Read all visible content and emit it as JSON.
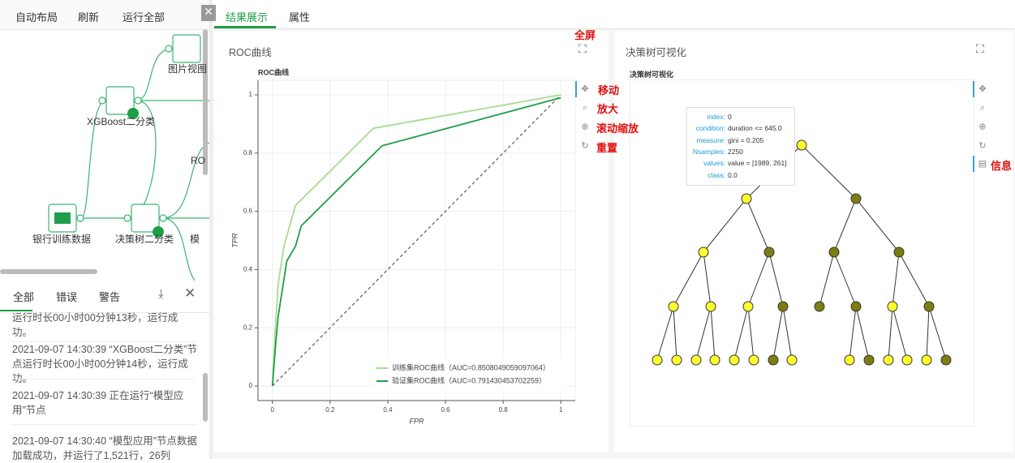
{
  "toolbar": [
    "自动布局",
    "刷新",
    "运行全部"
  ],
  "tabs": [
    "结果展示",
    "属性"
  ],
  "canvas_nodes": [
    "图片视图",
    "XGBoost二分类",
    "RO",
    "银行训练数据",
    "决策树二分类",
    "模"
  ],
  "log": {
    "tabs": [
      "全部",
      "错误",
      "警告"
    ],
    "entries": [
      "运行时长00小时00分钟13秒，运行成功。",
      "2021-09-07 14:30:39 “XGBoost二分类”节点运行时长00小时00分钟14秒，运行成功。",
      "2021-09-07 14:30:39 正在运行“模型应用”节点",
      "2021-09-07 14:30:40 “模型应用”节点数据加载成功，并运行了1,521行，26列"
    ]
  },
  "panels": {
    "roc": "ROC曲线",
    "tree": "决策树可视化",
    "tree_inner_title": "决策树可视化"
  },
  "tooltip": [
    {
      "label": "index:",
      "value": "0"
    },
    {
      "label": "condition:",
      "value": "duration <= 645.0"
    },
    {
      "label": "measure:",
      "value": "gini = 0.205"
    },
    {
      "label": "Nsamples:",
      "value": "2250"
    },
    {
      "label": "values:",
      "value": "value = [1989, 261]"
    },
    {
      "label": "class:",
      "value": "0.0"
    }
  ],
  "annotations": [
    "全屏",
    "移动",
    "放大",
    "滚动缩放",
    "重置",
    "信息"
  ],
  "chart_data": {
    "type": "line",
    "title": "ROC曲线",
    "x_label": "FPR",
    "y_label": "TPR",
    "xlim": [
      -0.05,
      1.05
    ],
    "ylim": [
      -0.05,
      1.05
    ],
    "xticks": [
      0,
      0.2,
      0.4,
      0.6,
      0.8,
      1
    ],
    "yticks": [
      0,
      0.2,
      0.4,
      0.6,
      0.8,
      1
    ],
    "grid": true,
    "legend": "lower right",
    "series": [
      {
        "name": "训练集ROC曲线（AUC=0.8508049059097064）",
        "color": "#a6dc8f",
        "x": [
          0,
          0.01,
          0.02,
          0.04,
          0.08,
          0.35,
          1
        ],
        "values": [
          0,
          0.2,
          0.35,
          0.48,
          0.62,
          0.885,
          1
        ]
      },
      {
        "name": "验证集ROC曲线（AUC=0.791430453702259）",
        "color": "#1e9e48",
        "x": [
          0,
          0.01,
          0.02,
          0.05,
          0.08,
          0.1,
          0.38,
          1
        ],
        "values": [
          0,
          0.13,
          0.24,
          0.43,
          0.48,
          0.55,
          0.825,
          0.99
        ]
      }
    ]
  }
}
